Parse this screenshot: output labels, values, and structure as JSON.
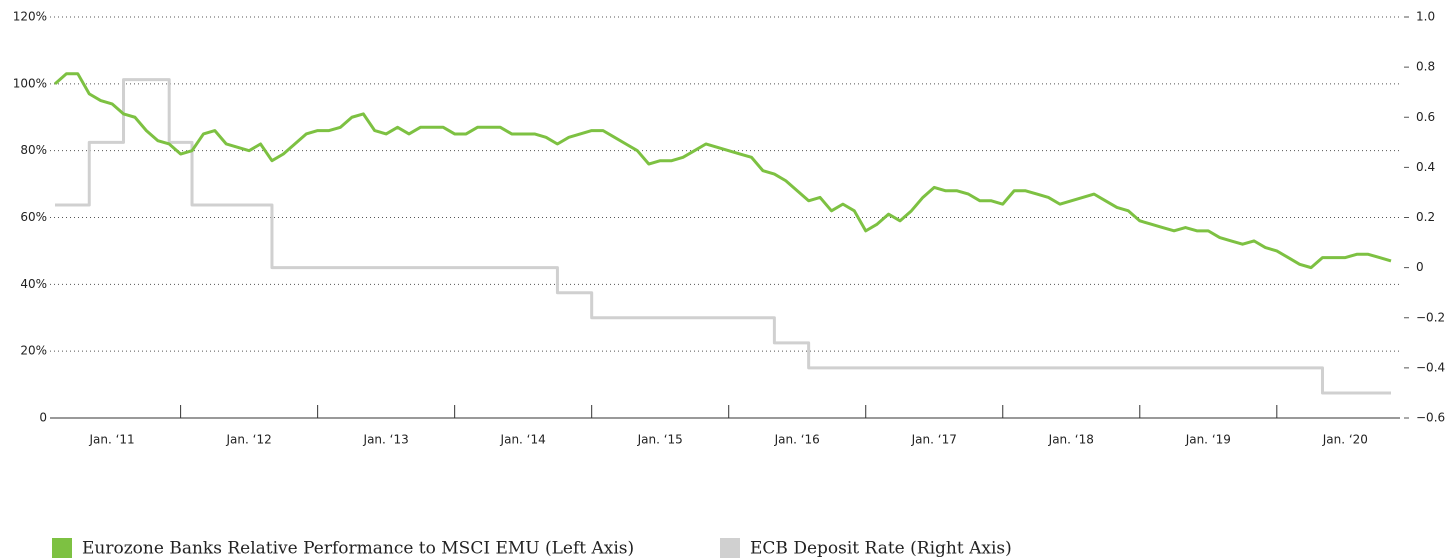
{
  "chart_data": {
    "type": "line",
    "x": [
      "2010-08",
      "2010-09",
      "2010-10",
      "2010-11",
      "2010-12",
      "2011-01",
      "2011-02",
      "2011-03",
      "2011-04",
      "2011-05",
      "2011-06",
      "2011-07",
      "2011-08",
      "2011-09",
      "2011-10",
      "2011-11",
      "2011-12",
      "2012-01",
      "2012-02",
      "2012-03",
      "2012-04",
      "2012-05",
      "2012-06",
      "2012-07",
      "2012-08",
      "2012-09",
      "2012-10",
      "2012-11",
      "2012-12",
      "2013-01",
      "2013-02",
      "2013-03",
      "2013-04",
      "2013-05",
      "2013-06",
      "2013-07",
      "2013-08",
      "2013-09",
      "2013-10",
      "2013-11",
      "2013-12",
      "2014-01",
      "2014-02",
      "2014-03",
      "2014-04",
      "2014-05",
      "2014-06",
      "2014-07",
      "2014-08",
      "2014-09",
      "2014-10",
      "2014-11",
      "2014-12",
      "2015-01",
      "2015-02",
      "2015-03",
      "2015-04",
      "2015-05",
      "2015-06",
      "2015-07",
      "2015-08",
      "2015-09",
      "2015-10",
      "2015-11",
      "2015-12",
      "2016-01",
      "2016-02",
      "2016-03",
      "2016-04",
      "2016-05",
      "2016-06",
      "2016-07",
      "2016-08",
      "2016-09",
      "2016-10",
      "2016-11",
      "2016-12",
      "2017-01",
      "2017-02",
      "2017-03",
      "2017-04",
      "2017-05",
      "2017-06",
      "2017-07",
      "2017-08",
      "2017-09",
      "2017-10",
      "2017-11",
      "2017-12",
      "2018-01",
      "2018-02",
      "2018-03",
      "2018-04",
      "2018-05",
      "2018-06",
      "2018-07",
      "2018-08",
      "2018-09",
      "2018-10",
      "2018-11",
      "2018-12",
      "2019-01",
      "2019-02",
      "2019-03",
      "2019-04",
      "2019-05",
      "2019-06",
      "2019-07",
      "2019-08",
      "2019-09",
      "2019-10",
      "2019-11",
      "2019-12",
      "2020-01",
      "2020-02",
      "2020-03",
      "2020-04",
      "2020-05"
    ],
    "xlim": [
      "2010-08",
      "2020-05"
    ],
    "xticks": [
      {
        "value": "2011-01",
        "label": "Jan. ‘11"
      },
      {
        "value": "2012-01",
        "label": "Jan. ‘12"
      },
      {
        "value": "2013-01",
        "label": "Jan. ‘13"
      },
      {
        "value": "2014-01",
        "label": "Jan. ‘14"
      },
      {
        "value": "2015-01",
        "label": "Jan. ‘15"
      },
      {
        "value": "2016-01",
        "label": "Jan. ‘16"
      },
      {
        "value": "2017-01",
        "label": "Jan. ‘17"
      },
      {
        "value": "2018-01",
        "label": "Jan. ‘18"
      },
      {
        "value": "2019-01",
        "label": "Jan. ‘19"
      },
      {
        "value": "2020-01",
        "label": "Jan. ‘20"
      }
    ],
    "ylim": [
      0,
      120
    ],
    "yticks": [
      0,
      {
        "value": 20,
        "label": "20%"
      },
      {
        "value": 40,
        "label": "40%"
      },
      {
        "value": 60,
        "label": "60%"
      },
      {
        "value": 80,
        "label": "80%"
      },
      {
        "value": 100,
        "label": "100%"
      },
      {
        "value": 120,
        "label": "120%"
      }
    ],
    "y2lim": [
      -0.6,
      1.0
    ],
    "y2ticks": [
      {
        "value": -0.6,
        "label": "−0.6"
      },
      {
        "value": -0.4,
        "label": "−0.4"
      },
      {
        "value": -0.2,
        "label": "−0.2"
      },
      0,
      0.2,
      0.4,
      0.6,
      0.8,
      {
        "value": 1.0,
        "label": "1.0"
      }
    ],
    "grid": true,
    "legend": "bottom",
    "series": [
      {
        "name": "Eurozone Banks Relative Performance to MSCI EMU (Left Axis)",
        "color": "#7dc142",
        "axis": "y",
        "values": [
          100,
          103,
          103,
          97,
          95,
          94,
          91,
          90,
          86,
          83,
          82,
          79,
          80,
          85,
          86,
          82,
          81,
          80,
          82,
          77,
          79,
          82,
          85,
          86,
          86,
          87,
          90,
          91,
          86,
          85,
          87,
          85,
          87,
          87,
          87,
          85,
          85,
          87,
          87,
          87,
          85,
          85,
          85,
          84,
          82,
          84,
          85,
          86,
          86,
          84,
          82,
          80,
          76,
          77,
          77,
          78,
          80,
          82,
          81,
          80,
          79,
          78,
          74,
          73,
          71,
          68,
          65,
          66,
          62,
          64,
          62,
          56,
          58,
          61,
          59,
          62,
          66,
          69,
          68,
          68,
          67,
          65,
          65,
          64,
          68,
          68,
          67,
          66,
          64,
          65,
          66,
          67,
          65,
          63,
          62,
          59,
          58,
          57,
          56,
          57,
          56,
          56,
          54,
          53,
          52,
          53,
          51,
          50,
          48,
          46,
          45,
          48,
          48,
          48,
          49,
          49,
          48,
          47
        ]
      },
      {
        "name": "ECB Deposit Rate (Right Axis)",
        "color": "#d0d0d0",
        "axis": "y2",
        "step": true,
        "values": [
          0.25,
          0.25,
          0.25,
          0.5,
          0.5,
          0.5,
          0.75,
          0.75,
          0.75,
          0.75,
          0.5,
          0.5,
          0.25,
          0.25,
          0.25,
          0.25,
          0.25,
          0.25,
          0.25,
          0,
          0,
          0,
          0,
          0,
          0,
          0,
          0,
          0,
          0,
          0,
          0,
          0,
          0,
          0,
          0,
          0,
          0,
          0,
          0,
          0,
          0,
          0,
          0,
          0,
          -0.1,
          -0.1,
          -0.1,
          -0.2,
          -0.2,
          -0.2,
          -0.2,
          -0.2,
          -0.2,
          -0.2,
          -0.2,
          -0.2,
          -0.2,
          -0.2,
          -0.2,
          -0.2,
          -0.2,
          -0.2,
          -0.2,
          -0.3,
          -0.3,
          -0.3,
          -0.4,
          -0.4,
          -0.4,
          -0.4,
          -0.4,
          -0.4,
          -0.4,
          -0.4,
          -0.4,
          -0.4,
          -0.4,
          -0.4,
          -0.4,
          -0.4,
          -0.4,
          -0.4,
          -0.4,
          -0.4,
          -0.4,
          -0.4,
          -0.4,
          -0.4,
          -0.4,
          -0.4,
          -0.4,
          -0.4,
          -0.4,
          -0.4,
          -0.4,
          -0.4,
          -0.4,
          -0.4,
          -0.4,
          -0.4,
          -0.4,
          -0.4,
          -0.4,
          -0.4,
          -0.4,
          -0.4,
          -0.4,
          -0.4,
          -0.4,
          -0.4,
          -0.4,
          -0.5,
          -0.5,
          -0.5,
          -0.5,
          -0.5,
          -0.5,
          -0.5
        ]
      }
    ]
  }
}
